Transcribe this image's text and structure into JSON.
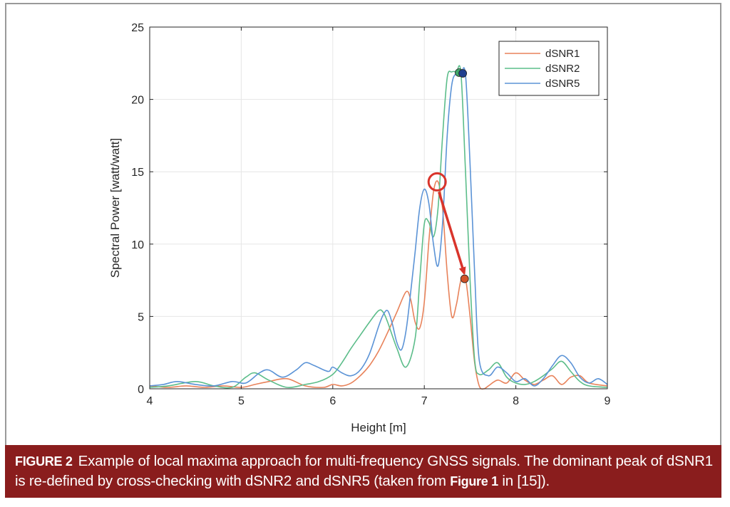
{
  "chart_data": {
    "type": "line",
    "xlabel": "Height [m]",
    "ylabel": "Spectral Power [watt/watt]",
    "xlim": [
      4,
      9
    ],
    "ylim": [
      0,
      25
    ],
    "xticks": [
      "4",
      "5",
      "6",
      "7",
      "8",
      "9"
    ],
    "yticks": [
      "0",
      "5",
      "10",
      "15",
      "20",
      "25"
    ],
    "grid": true,
    "legend_position": "top-right",
    "series": [
      {
        "name": "dSNR1",
        "color": "#e8825a",
        "x": [
          4.0,
          4.2,
          4.4,
          4.6,
          4.8,
          5.0,
          5.15,
          5.3,
          5.5,
          5.7,
          5.9,
          6.0,
          6.1,
          6.2,
          6.3,
          6.4,
          6.5,
          6.6,
          6.7,
          6.8,
          6.85,
          6.9,
          6.95,
          7.0,
          7.05,
          7.1,
          7.15,
          7.2,
          7.25,
          7.3,
          7.35,
          7.4,
          7.45,
          7.5,
          7.55,
          7.6,
          7.65,
          7.7,
          7.8,
          7.9,
          8.0,
          8.1,
          8.2,
          8.3,
          8.4,
          8.5,
          8.6,
          8.7,
          8.8,
          9.0
        ],
        "y": [
          0.2,
          0.1,
          0.2,
          0.1,
          0.2,
          0.1,
          0.3,
          0.5,
          0.7,
          0.2,
          0.1,
          0.3,
          0.2,
          0.4,
          0.9,
          1.6,
          2.6,
          3.9,
          5.3,
          6.7,
          6.2,
          4.6,
          4.2,
          6.0,
          10.2,
          13.6,
          14.3,
          12.4,
          8.0,
          5.0,
          5.8,
          7.5,
          7.6,
          5.0,
          1.8,
          0.2,
          0.0,
          0.2,
          0.6,
          0.4,
          1.1,
          0.6,
          0.3,
          0.6,
          0.9,
          0.3,
          0.8,
          0.9,
          0.4,
          0.2
        ]
      },
      {
        "name": "dSNR2",
        "color": "#5cbd8a",
        "x": [
          4.0,
          4.2,
          4.5,
          4.7,
          4.9,
          5.05,
          5.15,
          5.3,
          5.5,
          5.7,
          5.85,
          6.0,
          6.1,
          6.2,
          6.3,
          6.4,
          6.5,
          6.55,
          6.6,
          6.7,
          6.8,
          6.9,
          6.95,
          7.0,
          7.05,
          7.1,
          7.15,
          7.2,
          7.25,
          7.3,
          7.35,
          7.4,
          7.45,
          7.5,
          7.55,
          7.6,
          7.7,
          7.8,
          7.9,
          8.0,
          8.1,
          8.2,
          8.3,
          8.4,
          8.5,
          8.6,
          8.7,
          8.8,
          9.0
        ],
        "y": [
          0.1,
          0.2,
          0.5,
          0.2,
          0.1,
          0.8,
          1.1,
          0.6,
          0.1,
          0.3,
          0.5,
          1.0,
          1.8,
          2.8,
          3.7,
          4.6,
          5.4,
          5.3,
          4.6,
          2.8,
          1.5,
          3.5,
          7.5,
          11.4,
          11.5,
          10.5,
          12.5,
          17.5,
          21.5,
          21.9,
          21.9,
          21.8,
          15.0,
          7.5,
          2.0,
          1.0,
          1.3,
          1.8,
          0.8,
          0.4,
          0.3,
          0.5,
          0.9,
          1.4,
          1.9,
          1.2,
          0.5,
          0.2,
          0.1
        ]
      },
      {
        "name": "dSNR5",
        "color": "#5b93d6",
        "x": [
          4.0,
          4.15,
          4.3,
          4.5,
          4.7,
          4.9,
          5.05,
          5.2,
          5.3,
          5.45,
          5.6,
          5.7,
          5.8,
          5.95,
          6.0,
          6.1,
          6.2,
          6.3,
          6.4,
          6.5,
          6.55,
          6.6,
          6.65,
          6.7,
          6.75,
          6.8,
          6.85,
          6.9,
          6.95,
          7.0,
          7.05,
          7.1,
          7.15,
          7.2,
          7.25,
          7.3,
          7.35,
          7.4,
          7.45,
          7.5,
          7.55,
          7.6,
          7.7,
          7.8,
          7.9,
          8.0,
          8.1,
          8.2,
          8.3,
          8.4,
          8.5,
          8.6,
          8.7,
          8.8,
          8.9,
          9.0
        ],
        "y": [
          0.2,
          0.3,
          0.5,
          0.3,
          0.2,
          0.5,
          0.4,
          1.1,
          1.3,
          0.8,
          1.3,
          1.8,
          1.6,
          1.2,
          1.5,
          1.1,
          0.9,
          1.3,
          2.4,
          4.3,
          5.1,
          5.4,
          4.5,
          3.2,
          2.7,
          4.0,
          6.6,
          9.5,
          12.5,
          13.8,
          12.8,
          10.0,
          8.5,
          11.5,
          17.5,
          21.0,
          21.8,
          21.8,
          21.7,
          15.5,
          8.0,
          2.0,
          0.9,
          1.5,
          1.1,
          0.5,
          0.7,
          0.2,
          0.7,
          1.6,
          2.3,
          1.8,
          0.8,
          0.4,
          0.7,
          0.3
        ]
      }
    ],
    "annotations": [
      {
        "type": "circle-marker",
        "series": "dSNR2",
        "x": 7.38,
        "y": 21.85
      },
      {
        "type": "circle-marker",
        "series": "dSNR5",
        "x": 7.42,
        "y": 21.8
      },
      {
        "type": "circle-marker",
        "series": "dSNR1",
        "x": 7.44,
        "y": 7.6
      },
      {
        "type": "highlight-ring",
        "x": 7.14,
        "y": 14.3
      },
      {
        "type": "arrow",
        "from": [
          7.16,
          13.6
        ],
        "to": [
          7.43,
          8.1
        ]
      }
    ]
  },
  "caption": {
    "label": "FIGURE 2",
    "text_1": "Example of local maxima approach for multi-frequency GNSS signals. The dominant peak of dSNR1 is re-defined by cross-checking with dSNR2 and dSNR5 (taken from ",
    "ref_bold": "Figure 1",
    "text_2": " in [15])."
  },
  "colors": {
    "caption_bg": "#8a1d1d",
    "annotation_red": "#d9342b",
    "marker_dsnr1": "#d2542a",
    "marker_dsnr2": "#3fa66a",
    "marker_dsnr5": "#1f3f8f"
  }
}
